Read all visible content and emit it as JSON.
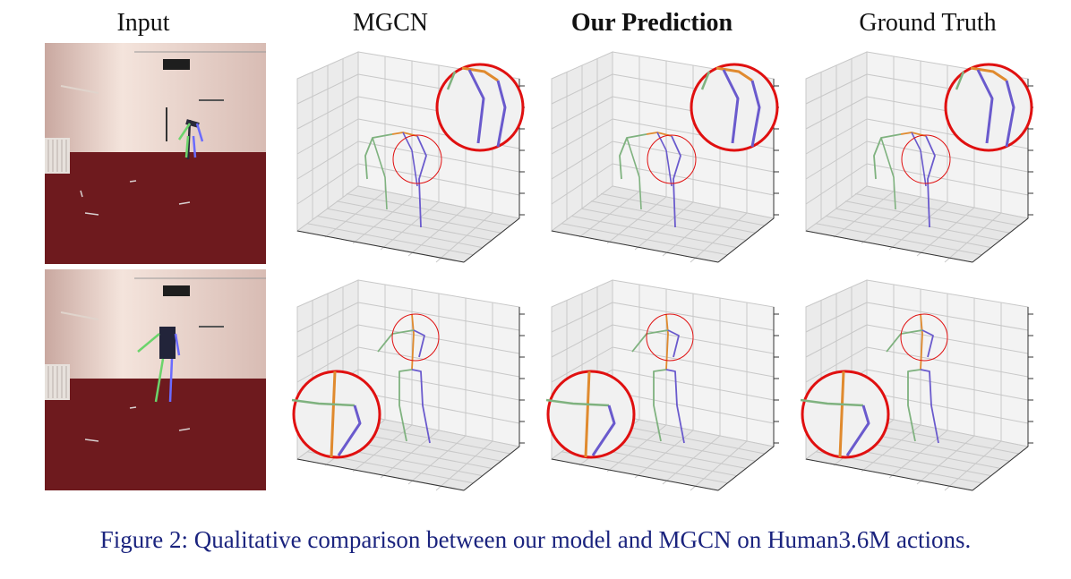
{
  "columns": {
    "input": "Input",
    "mgcn": "MGCN",
    "ours": "Our Prediction",
    "gt": "Ground Truth"
  },
  "caption": "Figure 2: Qualitative comparison between our model and MGCN on Human3.6M actions.",
  "colors": {
    "left_limb": "#7fb27f",
    "right_limb": "#6a5acd",
    "spine": "#e08a2e",
    "highlight": "#e01010",
    "grid": "#c8c8c8",
    "floor": "#6e1a1e",
    "wall": "#efdcd8",
    "caption": "#1a237e"
  },
  "rows": [
    {
      "row": "top",
      "input_image": "person bending forward with 2D skeleton overlay",
      "mgcn": "skeleton-pose-bent",
      "ours": "skeleton-pose-bent",
      "gt": "skeleton-pose-bent",
      "zoom_position": "top-right"
    },
    {
      "row": "bottom",
      "input_image": "person standing with arms out and 2D skeleton overlay",
      "mgcn": "skeleton-pose-standing",
      "ours": "skeleton-pose-standing",
      "gt": "skeleton-pose-standing",
      "zoom_position": "bottom-left"
    }
  ]
}
